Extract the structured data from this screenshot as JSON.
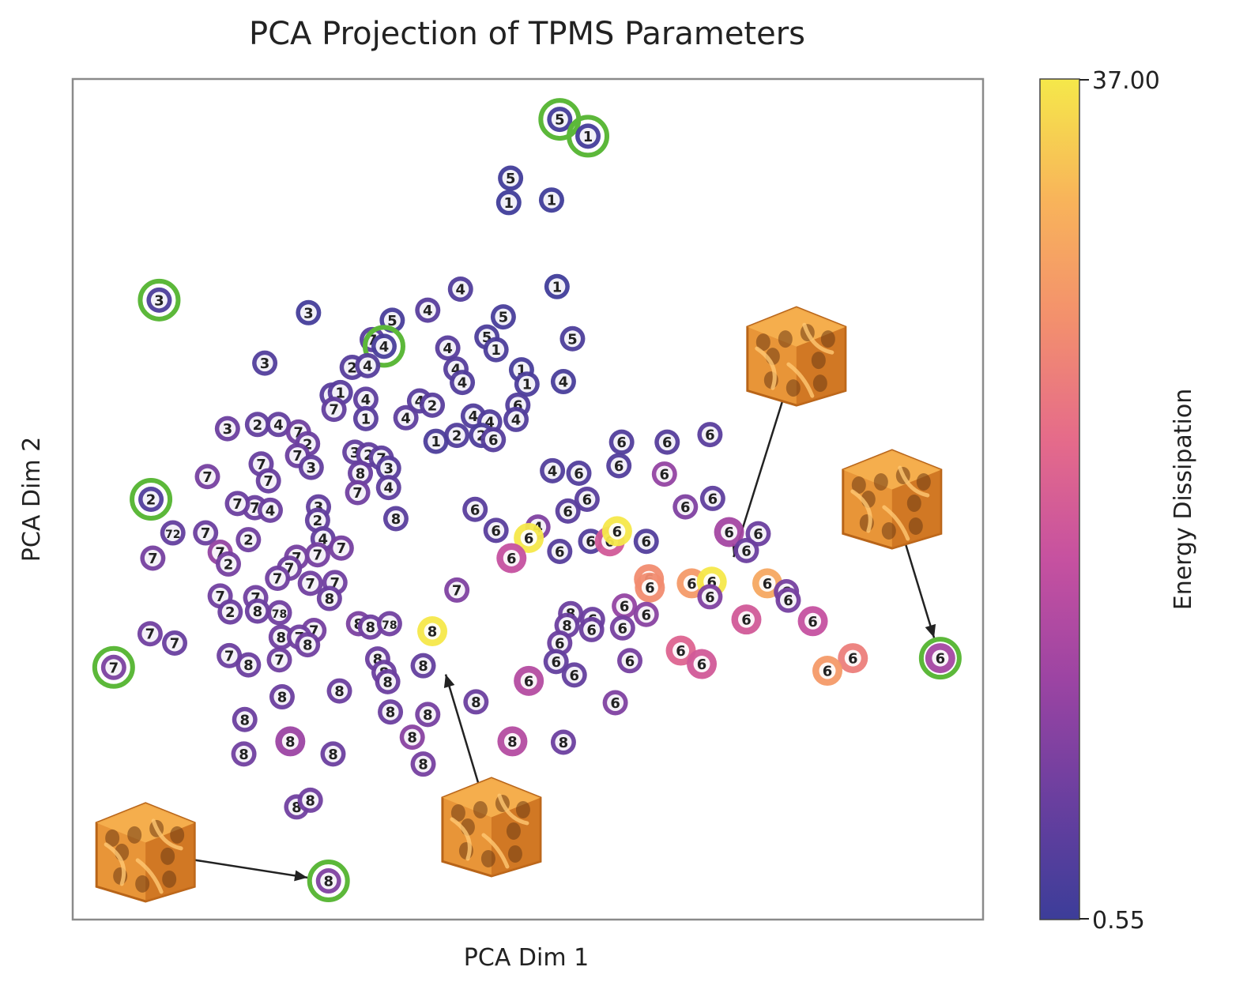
{
  "chart_data": {
    "type": "scatter",
    "title": "PCA Projection of TPMS Parameters",
    "xlabel": "PCA Dim 1",
    "ylabel": "PCA Dim 2",
    "xlim": [
      0,
      100
    ],
    "ylim": [
      0,
      100
    ],
    "grid": false,
    "colorbar": {
      "label": "Energy Dissipation",
      "min": 0.55,
      "max": 37.0,
      "min_label": "0.55",
      "max_label": "37.00",
      "colormap": "plasma",
      "stops": [
        "#3c3d99",
        "#6a3f9f",
        "#9c44a3",
        "#c651a0",
        "#e56b8a",
        "#f3906d",
        "#f8b45a",
        "#f5e84a"
      ]
    },
    "highlight_color": "#5cb83a",
    "insets": [
      {
        "name": "lattice-inset-bottom-left",
        "x": 8,
        "y": 8,
        "target": 28.1,
        "target_y": 4.6,
        "color": "#e89538"
      },
      {
        "name": "lattice-inset-bottom-center",
        "x": 46,
        "y": 11,
        "target": 40.3,
        "target_y": 31.6,
        "color": "#e89538"
      },
      {
        "name": "lattice-inset-top-right",
        "x": 79.5,
        "y": 67,
        "target": 71.9,
        "target_y": 40.7,
        "color": "#e89538"
      },
      {
        "name": "lattice-inset-right",
        "x": 90,
        "y": 50,
        "target": 95.3,
        "target_y": 31.1,
        "color": "#e89538"
      }
    ],
    "points": [
      {
        "x": 53.5,
        "y": 95.2,
        "label": "5",
        "value": 1.5,
        "highlight": true
      },
      {
        "x": 56.6,
        "y": 93.2,
        "label": "1",
        "value": 1.5,
        "highlight": true
      },
      {
        "x": 48.1,
        "y": 88.2,
        "label": "5",
        "value": 1.2
      },
      {
        "x": 47.9,
        "y": 85.3,
        "label": "1",
        "value": 1.0
      },
      {
        "x": 52.6,
        "y": 85.6,
        "label": "1",
        "value": 1.0
      },
      {
        "x": 9.5,
        "y": 73.7,
        "label": "3",
        "value": 2.5,
        "highlight": true
      },
      {
        "x": 25.9,
        "y": 72.2,
        "label": "3",
        "value": 1.5
      },
      {
        "x": 21.1,
        "y": 66.2,
        "label": "3",
        "value": 3.0
      },
      {
        "x": 42.6,
        "y": 75.0,
        "label": "4",
        "value": 3.0
      },
      {
        "x": 39.0,
        "y": 72.5,
        "label": "4",
        "value": 4.0
      },
      {
        "x": 35.1,
        "y": 71.3,
        "label": "5",
        "value": 2.0
      },
      {
        "x": 53.2,
        "y": 75.3,
        "label": "1",
        "value": 1.0
      },
      {
        "x": 47.3,
        "y": 71.7,
        "label": "5",
        "value": 2.0
      },
      {
        "x": 45.5,
        "y": 69.3,
        "label": "5",
        "value": 2.5
      },
      {
        "x": 46.5,
        "y": 67.8,
        "label": "1",
        "value": 2.5
      },
      {
        "x": 54.9,
        "y": 69.1,
        "label": "5",
        "value": 2.5
      },
      {
        "x": 32.9,
        "y": 69.0,
        "label": "7",
        "value": 4.0
      },
      {
        "x": 34.2,
        "y": 68.2,
        "label": "4",
        "value": 2.0,
        "highlight": true
      },
      {
        "x": 30.7,
        "y": 65.7,
        "label": "2",
        "value": 3.5
      },
      {
        "x": 32.4,
        "y": 65.9,
        "label": "4",
        "value": 3.5
      },
      {
        "x": 41.2,
        "y": 68.0,
        "label": "4",
        "value": 4.0
      },
      {
        "x": 42.1,
        "y": 65.5,
        "label": "4",
        "value": 3.5
      },
      {
        "x": 42.8,
        "y": 63.9,
        "label": "4",
        "value": 3.0
      },
      {
        "x": 49.3,
        "y": 65.4,
        "label": "1",
        "value": 2.0
      },
      {
        "x": 49.9,
        "y": 63.7,
        "label": "1",
        "value": 2.5
      },
      {
        "x": 53.9,
        "y": 64.0,
        "label": "4",
        "value": 2.0
      },
      {
        "x": 28.5,
        "y": 62.4,
        "label": "2",
        "value": 4.0
      },
      {
        "x": 29.4,
        "y": 62.7,
        "label": "1",
        "value": 4.0
      },
      {
        "x": 32.2,
        "y": 61.9,
        "label": "4",
        "value": 4.5
      },
      {
        "x": 28.7,
        "y": 60.7,
        "label": "7",
        "value": 5.0
      },
      {
        "x": 32.2,
        "y": 59.6,
        "label": "1",
        "value": 4.0
      },
      {
        "x": 38.1,
        "y": 61.7,
        "label": "4",
        "value": 4.0
      },
      {
        "x": 39.5,
        "y": 61.2,
        "label": "2",
        "value": 4.0
      },
      {
        "x": 36.6,
        "y": 59.7,
        "label": "4",
        "value": 4.5
      },
      {
        "x": 48.9,
        "y": 61.2,
        "label": "6",
        "value": 3.0
      },
      {
        "x": 44.0,
        "y": 59.9,
        "label": "4",
        "value": 3.0
      },
      {
        "x": 45.8,
        "y": 59.2,
        "label": "4",
        "value": 3.0
      },
      {
        "x": 48.7,
        "y": 59.5,
        "label": "4",
        "value": 3.0
      },
      {
        "x": 42.2,
        "y": 57.6,
        "label": "2",
        "value": 3.0
      },
      {
        "x": 44.9,
        "y": 57.6,
        "label": "2",
        "value": 2.5
      },
      {
        "x": 46.2,
        "y": 57.1,
        "label": "6",
        "value": 3.5
      },
      {
        "x": 39.9,
        "y": 56.9,
        "label": "1",
        "value": 2.5
      },
      {
        "x": 17.0,
        "y": 58.4,
        "label": "3",
        "value": 6.0
      },
      {
        "x": 20.3,
        "y": 58.9,
        "label": "2",
        "value": 5.0
      },
      {
        "x": 22.6,
        "y": 58.9,
        "label": "4",
        "value": 5.0
      },
      {
        "x": 24.8,
        "y": 58.0,
        "label": "7",
        "value": 6.5
      },
      {
        "x": 25.8,
        "y": 56.6,
        "label": "2",
        "value": 6.0
      },
      {
        "x": 24.7,
        "y": 55.2,
        "label": "7",
        "value": 6.0
      },
      {
        "x": 31.0,
        "y": 55.6,
        "label": "3",
        "value": 5.0
      },
      {
        "x": 32.5,
        "y": 55.3,
        "label": "2",
        "value": 5.0
      },
      {
        "x": 33.9,
        "y": 54.9,
        "label": "7",
        "value": 4.5
      },
      {
        "x": 20.7,
        "y": 54.2,
        "label": "7",
        "value": 5.5
      },
      {
        "x": 26.2,
        "y": 53.8,
        "label": "3",
        "value": 5.0
      },
      {
        "x": 34.7,
        "y": 53.7,
        "label": "3",
        "value": 4.0
      },
      {
        "x": 31.6,
        "y": 53.1,
        "label": "8",
        "value": 5.5
      },
      {
        "x": 14.8,
        "y": 52.7,
        "label": "7",
        "value": 7.0
      },
      {
        "x": 21.5,
        "y": 52.2,
        "label": "7",
        "value": 5.5
      },
      {
        "x": 31.3,
        "y": 50.8,
        "label": "7",
        "value": 6.5
      },
      {
        "x": 34.7,
        "y": 51.4,
        "label": "4",
        "value": 4.5
      },
      {
        "x": 20.0,
        "y": 49.0,
        "label": "7",
        "value": 6.0
      },
      {
        "x": 21.7,
        "y": 48.7,
        "label": "4",
        "value": 6.0
      },
      {
        "x": 18.1,
        "y": 49.5,
        "label": "7",
        "value": 6.0
      },
      {
        "x": 8.6,
        "y": 50.0,
        "label": "2",
        "value": 3.0,
        "highlight": true
      },
      {
        "x": 27.0,
        "y": 49.1,
        "label": "3",
        "value": 5.0
      },
      {
        "x": 26.9,
        "y": 47.5,
        "label": "2",
        "value": 5.0
      },
      {
        "x": 35.5,
        "y": 47.7,
        "label": "8",
        "value": 4.0
      },
      {
        "x": 11.0,
        "y": 46.0,
        "label": "72",
        "value": 5.0
      },
      {
        "x": 14.6,
        "y": 46.0,
        "label": "7",
        "value": 6.0
      },
      {
        "x": 19.3,
        "y": 45.2,
        "label": "2",
        "value": 6.5
      },
      {
        "x": 27.5,
        "y": 45.3,
        "label": "4",
        "value": 5.0
      },
      {
        "x": 29.5,
        "y": 44.2,
        "label": "7",
        "value": 7.0
      },
      {
        "x": 8.8,
        "y": 43.0,
        "label": "7",
        "value": 7.0
      },
      {
        "x": 16.2,
        "y": 43.7,
        "label": "7",
        "value": 10.0
      },
      {
        "x": 17.1,
        "y": 42.3,
        "label": "2",
        "value": 7.0
      },
      {
        "x": 24.6,
        "y": 43.1,
        "label": "7",
        "value": 7.0
      },
      {
        "x": 26.9,
        "y": 43.4,
        "label": "7",
        "value": 7.0
      },
      {
        "x": 23.8,
        "y": 41.8,
        "label": "7",
        "value": 6.5
      },
      {
        "x": 22.5,
        "y": 40.6,
        "label": "7",
        "value": 6.5
      },
      {
        "x": 26.1,
        "y": 40.0,
        "label": "7",
        "value": 6.5
      },
      {
        "x": 28.8,
        "y": 40.1,
        "label": "7",
        "value": 6.5
      },
      {
        "x": 16.2,
        "y": 38.5,
        "label": "7",
        "value": 6.5
      },
      {
        "x": 20.1,
        "y": 38.3,
        "label": "7",
        "value": 6.5
      },
      {
        "x": 28.2,
        "y": 38.2,
        "label": "8",
        "value": 6.0
      },
      {
        "x": 17.3,
        "y": 36.6,
        "label": "2",
        "value": 6.0
      },
      {
        "x": 20.3,
        "y": 36.7,
        "label": "8",
        "value": 6.0
      },
      {
        "x": 22.7,
        "y": 36.5,
        "label": "78",
        "value": 6.5
      },
      {
        "x": 26.5,
        "y": 34.4,
        "label": "7",
        "value": 7.0
      },
      {
        "x": 22.9,
        "y": 33.6,
        "label": "8",
        "value": 6.5
      },
      {
        "x": 24.9,
        "y": 33.6,
        "label": "7",
        "value": 6.5
      },
      {
        "x": 25.8,
        "y": 32.7,
        "label": "8",
        "value": 6.5
      },
      {
        "x": 31.4,
        "y": 35.2,
        "label": "8",
        "value": 7.5
      },
      {
        "x": 32.7,
        "y": 34.8,
        "label": "8",
        "value": 6.5
      },
      {
        "x": 34.8,
        "y": 35.2,
        "label": "78",
        "value": 6.5
      },
      {
        "x": 39.5,
        "y": 34.3,
        "label": "8",
        "value": 37.0
      },
      {
        "x": 42.2,
        "y": 39.2,
        "label": "7",
        "value": 8.0
      },
      {
        "x": 8.5,
        "y": 34.0,
        "label": "7",
        "value": 6.5
      },
      {
        "x": 11.2,
        "y": 32.9,
        "label": "7",
        "value": 5.5
      },
      {
        "x": 4.5,
        "y": 30.0,
        "label": "7",
        "value": 7.5,
        "highlight": true
      },
      {
        "x": 17.2,
        "y": 31.4,
        "label": "7",
        "value": 6.0
      },
      {
        "x": 19.3,
        "y": 30.3,
        "label": "8",
        "value": 6.0
      },
      {
        "x": 22.7,
        "y": 30.9,
        "label": "7",
        "value": 6.5
      },
      {
        "x": 33.5,
        "y": 31.0,
        "label": "8",
        "value": 6.0
      },
      {
        "x": 34.2,
        "y": 29.4,
        "label": "8",
        "value": 6.0
      },
      {
        "x": 34.6,
        "y": 28.3,
        "label": "8",
        "value": 6.0
      },
      {
        "x": 38.5,
        "y": 30.2,
        "label": "8",
        "value": 5.0
      },
      {
        "x": 23.0,
        "y": 26.5,
        "label": "8",
        "value": 6.0
      },
      {
        "x": 29.3,
        "y": 27.2,
        "label": "8",
        "value": 6.0
      },
      {
        "x": 34.9,
        "y": 24.7,
        "label": "8",
        "value": 6.0
      },
      {
        "x": 39.0,
        "y": 24.4,
        "label": "8",
        "value": 7.0
      },
      {
        "x": 18.9,
        "y": 23.8,
        "label": "8",
        "value": 6.0
      },
      {
        "x": 37.3,
        "y": 21.7,
        "label": "8",
        "value": 9.0
      },
      {
        "x": 23.9,
        "y": 21.2,
        "label": "8",
        "value": 11.0
      },
      {
        "x": 18.8,
        "y": 19.7,
        "label": "8",
        "value": 6.5
      },
      {
        "x": 28.6,
        "y": 19.7,
        "label": "8",
        "value": 6.0
      },
      {
        "x": 38.5,
        "y": 18.5,
        "label": "8",
        "value": 7.0
      },
      {
        "x": 24.6,
        "y": 13.4,
        "label": "8",
        "value": 6.5
      },
      {
        "x": 26.1,
        "y": 14.2,
        "label": "8",
        "value": 6.5
      },
      {
        "x": 28.1,
        "y": 4.6,
        "label": "8",
        "value": 8.0,
        "highlight": true
      },
      {
        "x": 44.3,
        "y": 25.9,
        "label": "8",
        "value": 6.0
      },
      {
        "x": 48.3,
        "y": 21.2,
        "label": "8",
        "value": 14.0
      },
      {
        "x": 53.9,
        "y": 21.1,
        "label": "8",
        "value": 6.0
      },
      {
        "x": 44.2,
        "y": 48.8,
        "label": "6",
        "value": 4.0
      },
      {
        "x": 46.5,
        "y": 46.3,
        "label": "6",
        "value": 4.0
      },
      {
        "x": 51.1,
        "y": 46.7,
        "label": "4",
        "value": 8.0
      },
      {
        "x": 50.1,
        "y": 45.4,
        "label": "6",
        "value": 37.0
      },
      {
        "x": 48.2,
        "y": 43.0,
        "label": "6",
        "value": 16.0
      },
      {
        "x": 53.5,
        "y": 43.8,
        "label": "6",
        "value": 3.5
      },
      {
        "x": 54.4,
        "y": 48.6,
        "label": "6",
        "value": 4.0
      },
      {
        "x": 56.5,
        "y": 50.0,
        "label": "6",
        "value": 4.0
      },
      {
        "x": 52.7,
        "y": 53.4,
        "label": "4",
        "value": 3.0
      },
      {
        "x": 55.6,
        "y": 53.1,
        "label": "6",
        "value": 3.0
      },
      {
        "x": 60.3,
        "y": 56.8,
        "label": "6",
        "value": 3.0
      },
      {
        "x": 65.3,
        "y": 56.8,
        "label": "6",
        "value": 3.5
      },
      {
        "x": 70.0,
        "y": 57.7,
        "label": "6",
        "value": 4.0
      },
      {
        "x": 60.0,
        "y": 54.0,
        "label": "6",
        "value": 3.0
      },
      {
        "x": 65.0,
        "y": 53.0,
        "label": "6",
        "value": 10.0
      },
      {
        "x": 67.3,
        "y": 49.1,
        "label": "6",
        "value": 8.0
      },
      {
        "x": 70.3,
        "y": 50.1,
        "label": "6",
        "value": 4.5
      },
      {
        "x": 56.9,
        "y": 45.0,
        "label": "6",
        "value": 3.0
      },
      {
        "x": 59.0,
        "y": 45.0,
        "label": "6",
        "value": 18.0
      },
      {
        "x": 59.8,
        "y": 46.2,
        "label": "6",
        "value": 37.0
      },
      {
        "x": 63.0,
        "y": 45.0,
        "label": "6",
        "value": 3.0
      },
      {
        "x": 72.1,
        "y": 46.1,
        "label": "6",
        "value": 12.0
      },
      {
        "x": 75.3,
        "y": 45.9,
        "label": "6",
        "value": 6.0
      },
      {
        "x": 74.0,
        "y": 43.9,
        "label": "6",
        "value": 6.0
      },
      {
        "x": 63.3,
        "y": 40.5,
        "label": "6",
        "value": 26.0
      },
      {
        "x": 63.4,
        "y": 39.5,
        "label": "6",
        "value": 26.0
      },
      {
        "x": 68.0,
        "y": 40.0,
        "label": "6",
        "value": 28.0
      },
      {
        "x": 70.2,
        "y": 40.2,
        "label": "6",
        "value": 37.0
      },
      {
        "x": 70.0,
        "y": 38.4,
        "label": "6",
        "value": 8.0
      },
      {
        "x": 76.3,
        "y": 40.0,
        "label": "6",
        "value": 30.0
      },
      {
        "x": 78.4,
        "y": 39.0,
        "label": "6",
        "value": 7.0
      },
      {
        "x": 78.6,
        "y": 38.0,
        "label": "6",
        "value": 7.0
      },
      {
        "x": 60.6,
        "y": 37.3,
        "label": "6",
        "value": 10.0
      },
      {
        "x": 63.0,
        "y": 36.3,
        "label": "6",
        "value": 9.0
      },
      {
        "x": 74.0,
        "y": 35.7,
        "label": "6",
        "value": 18.0
      },
      {
        "x": 81.3,
        "y": 35.5,
        "label": "6",
        "value": 16.0
      },
      {
        "x": 54.7,
        "y": 36.4,
        "label": "8",
        "value": 6.0
      },
      {
        "x": 57.1,
        "y": 35.7,
        "label": "6",
        "value": 6.0
      },
      {
        "x": 54.3,
        "y": 35.0,
        "label": "8",
        "value": 6.0
      },
      {
        "x": 57.0,
        "y": 34.5,
        "label": "6",
        "value": 6.0
      },
      {
        "x": 60.4,
        "y": 34.7,
        "label": "6",
        "value": 7.0
      },
      {
        "x": 53.5,
        "y": 32.9,
        "label": "6",
        "value": 6.0
      },
      {
        "x": 53.1,
        "y": 30.7,
        "label": "6",
        "value": 5.0
      },
      {
        "x": 61.2,
        "y": 30.8,
        "label": "6",
        "value": 7.0
      },
      {
        "x": 55.1,
        "y": 29.1,
        "label": "6",
        "value": 5.0
      },
      {
        "x": 50.1,
        "y": 28.4,
        "label": "6",
        "value": 14.0
      },
      {
        "x": 66.8,
        "y": 32.0,
        "label": "6",
        "value": 20.0
      },
      {
        "x": 69.1,
        "y": 30.4,
        "label": "6",
        "value": 18.0
      },
      {
        "x": 85.7,
        "y": 31.1,
        "label": "6",
        "value": 24.0
      },
      {
        "x": 82.9,
        "y": 29.6,
        "label": "6",
        "value": 28.0
      },
      {
        "x": 95.3,
        "y": 31.1,
        "label": "6",
        "value": 12.0,
        "highlight": true
      },
      {
        "x": 59.6,
        "y": 25.8,
        "label": "6",
        "value": 8.0
      }
    ]
  }
}
